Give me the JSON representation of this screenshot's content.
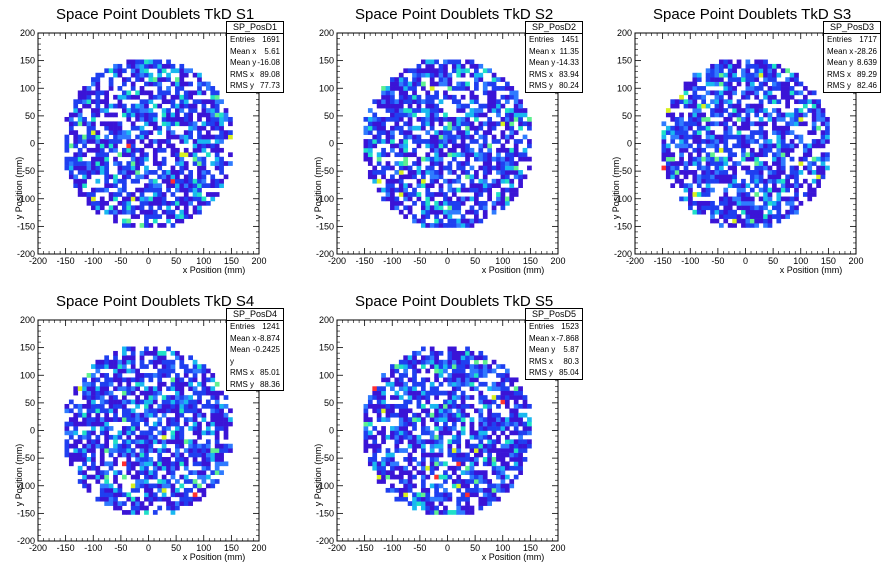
{
  "chart_data": [
    {
      "type": "heatmap",
      "title": "Space Point Doublets TkD S1",
      "xlabel": "x Position (mm)",
      "ylabel": "y Position (mm)",
      "xlim": [
        -200,
        200
      ],
      "ylim": [
        -200,
        200
      ],
      "xticks": [
        -200,
        -150,
        -100,
        -50,
        0,
        50,
        100,
        150,
        200
      ],
      "yticks": [
        -200,
        -150,
        -100,
        -50,
        0,
        50,
        100,
        150,
        200
      ],
      "stats": {
        "name": "SP_PosD1",
        "rows": [
          {
            "label": "Entries",
            "value": "1691"
          },
          {
            "label": "Mean x",
            "value": "5.61"
          },
          {
            "label": "Mean y",
            "value": "-16.08"
          },
          {
            "label": "RMS x",
            "value": "89.08"
          },
          {
            "label": "RMS y",
            "value": "77.73"
          }
        ]
      },
      "entries": 1691,
      "mean_x": 5.61,
      "mean_y": -16.08,
      "rms_x": 89.08,
      "rms_y": 77.73,
      "seed": 11
    },
    {
      "type": "heatmap",
      "title": "Space Point Doublets TkD S2",
      "xlabel": "x Position (mm)",
      "ylabel": "y Position (mm)",
      "xlim": [
        -200,
        200
      ],
      "ylim": [
        -200,
        200
      ],
      "xticks": [
        -200,
        -150,
        -100,
        -50,
        0,
        50,
        100,
        150,
        200
      ],
      "yticks": [
        -200,
        -150,
        -100,
        -50,
        0,
        50,
        100,
        150,
        200
      ],
      "stats": {
        "name": "SP_PosD2",
        "rows": [
          {
            "label": "Entries",
            "value": "1451"
          },
          {
            "label": "Mean x",
            "value": "11.35"
          },
          {
            "label": "Mean y",
            "value": "-14.33"
          },
          {
            "label": "RMS x",
            "value": "83.94"
          },
          {
            "label": "RMS y",
            "value": "80.24"
          }
        ]
      },
      "entries": 1451,
      "mean_x": 11.35,
      "mean_y": -14.33,
      "rms_x": 83.94,
      "rms_y": 80.24,
      "seed": 23
    },
    {
      "type": "heatmap",
      "title": "Space Point Doublets TkD S3",
      "xlabel": "x Position (mm)",
      "ylabel": "y Position (mm)",
      "xlim": [
        -200,
        200
      ],
      "ylim": [
        -200,
        200
      ],
      "xticks": [
        -200,
        -150,
        -100,
        -50,
        0,
        50,
        100,
        150,
        200
      ],
      "yticks": [
        -200,
        -150,
        -100,
        -50,
        0,
        50,
        100,
        150,
        200
      ],
      "stats": {
        "name": "SP_PosD3",
        "rows": [
          {
            "label": "Entries",
            "value": "1717"
          },
          {
            "label": "Mean x",
            "value": "-28.26"
          },
          {
            "label": "Mean y",
            "value": "8.639"
          },
          {
            "label": "RMS x",
            "value": "89.29"
          },
          {
            "label": "RMS y",
            "value": "82.46"
          }
        ]
      },
      "entries": 1717,
      "mean_x": -28.26,
      "mean_y": 8.639,
      "rms_x": 89.29,
      "rms_y": 82.46,
      "seed": 37
    },
    {
      "type": "heatmap",
      "title": "Space Point Doublets TkD S4",
      "xlabel": "x Position (mm)",
      "ylabel": "y Position (mm)",
      "xlim": [
        -200,
        200
      ],
      "ylim": [
        -200,
        200
      ],
      "xticks": [
        -200,
        -150,
        -100,
        -50,
        0,
        50,
        100,
        150,
        200
      ],
      "yticks": [
        -200,
        -150,
        -100,
        -50,
        0,
        50,
        100,
        150,
        200
      ],
      "stats": {
        "name": "SP_PosD4",
        "rows": [
          {
            "label": "Entries",
            "value": "1241"
          },
          {
            "label": "Mean x",
            "value": "-8.874"
          },
          {
            "label": "Mean y",
            "value": "-0.2425"
          },
          {
            "label": "RMS x",
            "value": "85.01"
          },
          {
            "label": "RMS y",
            "value": "88.36"
          }
        ]
      },
      "entries": 1241,
      "mean_x": -8.874,
      "mean_y": -0.2425,
      "rms_x": 85.01,
      "rms_y": 88.36,
      "seed": 41
    },
    {
      "type": "heatmap",
      "title": "Space Point Doublets TkD S5",
      "xlabel": "x Position (mm)",
      "ylabel": "y Position (mm)",
      "xlim": [
        -200,
        200
      ],
      "ylim": [
        -200,
        200
      ],
      "xticks": [
        -200,
        -150,
        -100,
        -50,
        0,
        50,
        100,
        150,
        200
      ],
      "yticks": [
        -200,
        -150,
        -100,
        -50,
        0,
        50,
        100,
        150,
        200
      ],
      "stats": {
        "name": "SP_PosD5",
        "rows": [
          {
            "label": "Entries",
            "value": "1523"
          },
          {
            "label": "Mean x",
            "value": "-7.868"
          },
          {
            "label": "Mean y",
            "value": "5.87"
          },
          {
            "label": "RMS x",
            "value": "80.3"
          },
          {
            "label": "RMS y",
            "value": "85.04"
          }
        ]
      },
      "entries": 1523,
      "mean_x": -7.868,
      "mean_y": 5.87,
      "rms_x": 80.3,
      "rms_y": 85.04,
      "seed": 53
    }
  ],
  "colors": {
    "palette": [
      "#3a14d6",
      "#1f3ff0",
      "#2f7bff",
      "#19b8f0",
      "#1fe0c8",
      "#5ff090",
      "#d8f020",
      "#ff3030"
    ],
    "axis": "#000000",
    "background": "#ffffff"
  }
}
